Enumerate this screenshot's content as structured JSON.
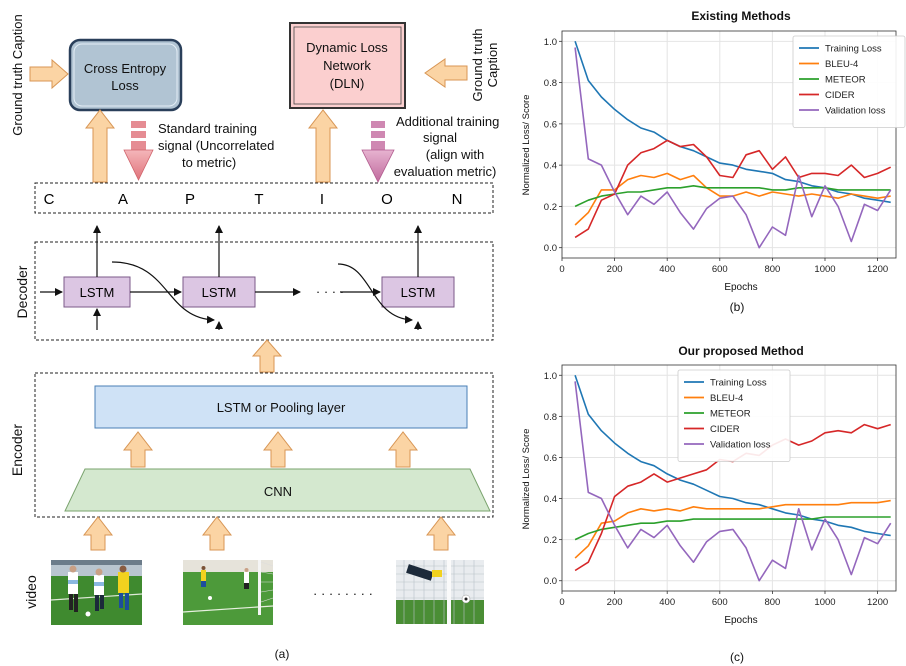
{
  "diagram": {
    "gt_left": "Ground truth Caption",
    "gt_right_line1": "Ground truth",
    "gt_right_line2": "Caption",
    "cross_entropy_line1": "Cross Entropy",
    "cross_entropy_line2": "Loss",
    "dln_line1": "Dynamic Loss",
    "dln_line2": "Network",
    "dln_line3": "(DLN)",
    "standard_line1": "Standard training",
    "standard_line2": "signal (Uncorrelated",
    "standard_line3": "to metric)",
    "additional_line1": "Additional training",
    "additional_line2": "signal",
    "additional_line3": "(align with",
    "additional_line4": "evaluation metric)",
    "caption_letters": [
      "C",
      "A",
      "P",
      "T",
      "I",
      "O",
      "N"
    ],
    "decoder_label": "Decoder",
    "lstm_label": "LSTM",
    "ellipsis": "· · · ·",
    "encoder_label": "Encoder",
    "pool_label": "LSTM or Pooling layer",
    "cnn_label": "CNN",
    "video_label": "video",
    "frames_dots": "· · · · · · · ·",
    "panel_label": "(a)"
  },
  "chart_data": [
    {
      "type": "line",
      "title": "Existing Methods",
      "panel_label": "(b)",
      "xlabel": "Epochs",
      "ylabel": "Normalized Loss/ Score",
      "xlim": [
        0,
        1270
      ],
      "ylim": [
        -0.05,
        1.05
      ],
      "xticks": [
        0,
        200,
        400,
        600,
        800,
        1000,
        1200
      ],
      "yticks": [
        0.0,
        0.2,
        0.4,
        0.6,
        0.8,
        1.0
      ],
      "grid": true,
      "legend": "top-right",
      "series": [
        {
          "name": "Training Loss",
          "color": "#1f77b4",
          "x": [
            50,
            100,
            150,
            200,
            250,
            300,
            350,
            400,
            450,
            500,
            550,
            600,
            650,
            700,
            750,
            800,
            850,
            900,
            950,
            1000,
            1050,
            1100,
            1150,
            1200,
            1250
          ],
          "y": [
            1.0,
            0.81,
            0.73,
            0.67,
            0.62,
            0.58,
            0.56,
            0.52,
            0.49,
            0.47,
            0.44,
            0.41,
            0.4,
            0.38,
            0.37,
            0.36,
            0.33,
            0.32,
            0.3,
            0.29,
            0.27,
            0.26,
            0.24,
            0.23,
            0.22
          ]
        },
        {
          "name": "BLEU-4",
          "color": "#ff7f0e",
          "x": [
            50,
            100,
            150,
            200,
            250,
            300,
            350,
            400,
            450,
            500,
            550,
            600,
            650,
            700,
            750,
            800,
            850,
            900,
            950,
            1000,
            1050,
            1100,
            1150,
            1200,
            1250
          ],
          "y": [
            0.11,
            0.17,
            0.28,
            0.28,
            0.33,
            0.35,
            0.34,
            0.36,
            0.33,
            0.35,
            0.29,
            0.25,
            0.25,
            0.27,
            0.25,
            0.27,
            0.26,
            0.25,
            0.26,
            0.25,
            0.24,
            0.26,
            0.25,
            0.24,
            0.25
          ]
        },
        {
          "name": "METEOR",
          "color": "#2ca02c",
          "x": [
            50,
            100,
            150,
            200,
            250,
            300,
            350,
            400,
            450,
            500,
            550,
            600,
            650,
            700,
            750,
            800,
            850,
            900,
            950,
            1000,
            1050,
            1100,
            1150,
            1200,
            1250
          ],
          "y": [
            0.2,
            0.23,
            0.25,
            0.26,
            0.27,
            0.27,
            0.28,
            0.29,
            0.29,
            0.3,
            0.29,
            0.29,
            0.29,
            0.29,
            0.29,
            0.28,
            0.28,
            0.29,
            0.29,
            0.29,
            0.28,
            0.28,
            0.28,
            0.28,
            0.28
          ]
        },
        {
          "name": "CIDER",
          "color": "#d62728",
          "x": [
            50,
            100,
            150,
            200,
            250,
            300,
            350,
            400,
            450,
            500,
            550,
            600,
            650,
            700,
            750,
            800,
            850,
            900,
            950,
            1000,
            1050,
            1100,
            1150,
            1200,
            1250
          ],
          "y": [
            0.05,
            0.09,
            0.23,
            0.26,
            0.4,
            0.46,
            0.48,
            0.52,
            0.49,
            0.5,
            0.44,
            0.35,
            0.34,
            0.45,
            0.47,
            0.38,
            0.44,
            0.34,
            0.36,
            0.36,
            0.35,
            0.4,
            0.34,
            0.36,
            0.39
          ]
        },
        {
          "name": "Validation loss",
          "color": "#9467bd",
          "x": [
            50,
            100,
            150,
            200,
            250,
            300,
            350,
            400,
            450,
            500,
            550,
            600,
            650,
            700,
            750,
            800,
            850,
            900,
            950,
            1000,
            1050,
            1100,
            1150,
            1200,
            1250
          ],
          "y": [
            0.97,
            0.43,
            0.4,
            0.27,
            0.16,
            0.25,
            0.21,
            0.27,
            0.17,
            0.09,
            0.19,
            0.24,
            0.25,
            0.16,
            0.0,
            0.1,
            0.06,
            0.35,
            0.15,
            0.3,
            0.2,
            0.03,
            0.21,
            0.18,
            0.28
          ]
        }
      ]
    },
    {
      "type": "line",
      "title": "Our proposed Method",
      "panel_label": "(c)",
      "xlabel": "Epochs",
      "ylabel": "Normalized Loss/ Score",
      "xlim": [
        0,
        1270
      ],
      "ylim": [
        -0.05,
        1.05
      ],
      "xticks": [
        0,
        200,
        400,
        600,
        800,
        1000,
        1200
      ],
      "yticks": [
        0.0,
        0.2,
        0.4,
        0.6,
        0.8,
        1.0
      ],
      "grid": true,
      "legend": "top-center",
      "series": [
        {
          "name": "Training Loss",
          "color": "#1f77b4",
          "x": [
            50,
            100,
            150,
            200,
            250,
            300,
            350,
            400,
            450,
            500,
            550,
            600,
            650,
            700,
            750,
            800,
            850,
            900,
            950,
            1000,
            1050,
            1100,
            1150,
            1200,
            1250
          ],
          "y": [
            1.0,
            0.81,
            0.73,
            0.67,
            0.62,
            0.58,
            0.56,
            0.52,
            0.49,
            0.47,
            0.44,
            0.41,
            0.4,
            0.38,
            0.37,
            0.35,
            0.33,
            0.32,
            0.3,
            0.29,
            0.27,
            0.26,
            0.24,
            0.23,
            0.22
          ]
        },
        {
          "name": "BLEU-4",
          "color": "#ff7f0e",
          "x": [
            50,
            100,
            150,
            200,
            250,
            300,
            350,
            400,
            450,
            500,
            550,
            600,
            650,
            700,
            750,
            800,
            850,
            900,
            950,
            1000,
            1050,
            1100,
            1150,
            1200,
            1250
          ],
          "y": [
            0.11,
            0.17,
            0.28,
            0.29,
            0.33,
            0.35,
            0.34,
            0.35,
            0.34,
            0.36,
            0.35,
            0.35,
            0.35,
            0.35,
            0.35,
            0.36,
            0.37,
            0.37,
            0.37,
            0.37,
            0.37,
            0.38,
            0.38,
            0.38,
            0.39
          ]
        },
        {
          "name": "METEOR",
          "color": "#2ca02c",
          "x": [
            50,
            100,
            150,
            200,
            250,
            300,
            350,
            400,
            450,
            500,
            550,
            600,
            650,
            700,
            750,
            800,
            850,
            900,
            950,
            1000,
            1050,
            1100,
            1150,
            1200,
            1250
          ],
          "y": [
            0.2,
            0.23,
            0.25,
            0.26,
            0.27,
            0.28,
            0.28,
            0.29,
            0.29,
            0.3,
            0.3,
            0.3,
            0.3,
            0.3,
            0.3,
            0.3,
            0.3,
            0.3,
            0.3,
            0.31,
            0.31,
            0.31,
            0.31,
            0.31,
            0.31
          ]
        },
        {
          "name": "CIDER",
          "color": "#d62728",
          "x": [
            50,
            100,
            150,
            200,
            250,
            300,
            350,
            400,
            450,
            500,
            550,
            600,
            650,
            700,
            750,
            800,
            850,
            900,
            950,
            1000,
            1050,
            1100,
            1150,
            1200,
            1250
          ],
          "y": [
            0.05,
            0.09,
            0.23,
            0.41,
            0.46,
            0.48,
            0.52,
            0.48,
            0.5,
            0.52,
            0.54,
            0.59,
            0.58,
            0.62,
            0.61,
            0.66,
            0.69,
            0.66,
            0.68,
            0.72,
            0.73,
            0.72,
            0.76,
            0.74,
            0.76
          ]
        },
        {
          "name": "Validation loss",
          "color": "#9467bd",
          "x": [
            50,
            100,
            150,
            200,
            250,
            300,
            350,
            400,
            450,
            500,
            550,
            600,
            650,
            700,
            750,
            800,
            850,
            900,
            950,
            1000,
            1050,
            1100,
            1150,
            1200,
            1250
          ],
          "y": [
            0.97,
            0.43,
            0.4,
            0.27,
            0.16,
            0.25,
            0.21,
            0.27,
            0.17,
            0.09,
            0.19,
            0.24,
            0.25,
            0.16,
            0.0,
            0.1,
            0.06,
            0.35,
            0.15,
            0.3,
            0.2,
            0.03,
            0.21,
            0.18,
            0.28
          ]
        }
      ]
    }
  ]
}
